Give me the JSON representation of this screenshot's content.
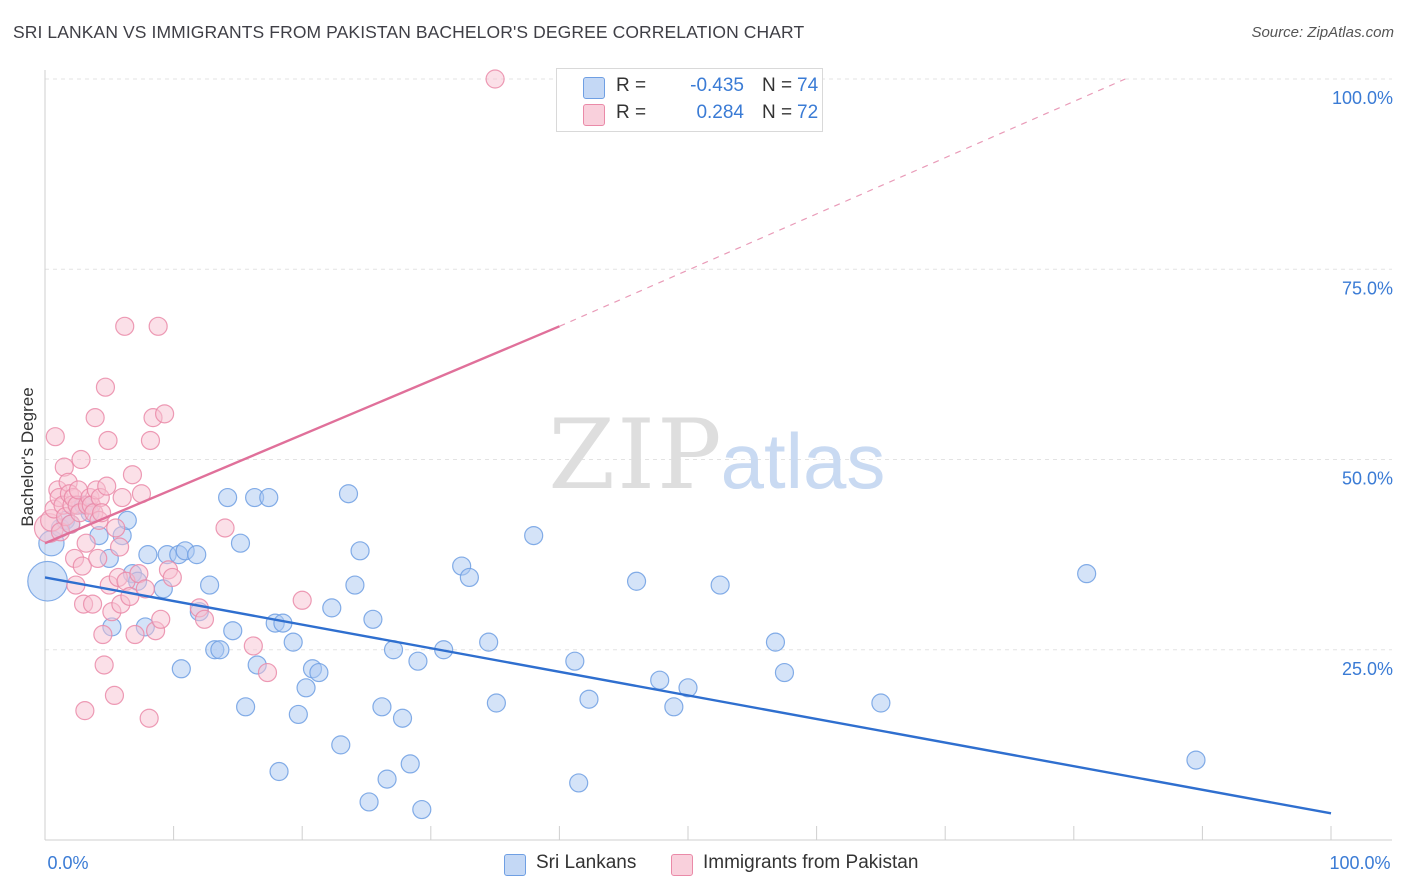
{
  "title": "SRI LANKAN VS IMMIGRANTS FROM PAKISTAN BACHELOR'S DEGREE CORRELATION CHART",
  "source": "Source: ZipAtlas.com",
  "watermark": {
    "part1": "ZIP",
    "part2": "atlas"
  },
  "legend": {
    "rows": [
      {
        "r_label": "R =",
        "r_value": "-0.435",
        "n_label": "N =",
        "n_value": "74",
        "color": "#a9c7f2",
        "border": "#6f9fe3"
      },
      {
        "r_label": "R =",
        "r_value": "0.284",
        "n_label": "N =",
        "n_value": "72",
        "color": "#f7c1d1",
        "border": "#ea8aa8"
      }
    ]
  },
  "bottom_legend": [
    {
      "label": "Sri Lankans",
      "color": "#a9c7f2",
      "border": "#6f9fe3"
    },
    {
      "label": "Immigrants from Pakistan",
      "color": "#f7c1d1",
      "border": "#ea8aa8"
    }
  ],
  "chart_data": {
    "type": "scatter",
    "title": "SRI LANKAN VS IMMIGRANTS FROM PAKISTAN BACHELOR'S DEGREE CORRELATION CHART",
    "xlabel": "",
    "ylabel": "Bachelor's Degree",
    "xlim": [
      0,
      100
    ],
    "ylim": [
      0,
      100
    ],
    "x_tick_labels": [
      "0.0%",
      "100.0%"
    ],
    "y_tick_labels": [
      "25.0%",
      "50.0%",
      "75.0%",
      "100.0%"
    ],
    "y_ticks": [
      25,
      50,
      75,
      100
    ],
    "grid": true,
    "series": [
      {
        "name": "Sri Lankans",
        "color": "#6f9fe3",
        "fill": "#a9c7f2",
        "trend": {
          "x": [
            0,
            100
          ],
          "y": [
            34.5,
            3.5
          ],
          "color": "#2f6fcf",
          "dashed_extension": false
        },
        "points": [
          {
            "x": 0.2,
            "y": 34,
            "s": 2.2
          },
          {
            "x": 0.5,
            "y": 39,
            "s": 1.4
          },
          {
            "x": 1.2,
            "y": 41,
            "s": 1
          },
          {
            "x": 1.6,
            "y": 42,
            "s": 1
          },
          {
            "x": 2.0,
            "y": 41.5,
            "s": 1
          },
          {
            "x": 2.5,
            "y": 44,
            "s": 1
          },
          {
            "x": 3.0,
            "y": 44,
            "s": 1
          },
          {
            "x": 3.5,
            "y": 43,
            "s": 1
          },
          {
            "x": 4.2,
            "y": 40,
            "s": 1
          },
          {
            "x": 5.0,
            "y": 37,
            "s": 1
          },
          {
            "x": 5.2,
            "y": 28,
            "s": 1
          },
          {
            "x": 6.0,
            "y": 40,
            "s": 1
          },
          {
            "x": 6.4,
            "y": 42,
            "s": 1
          },
          {
            "x": 6.8,
            "y": 35,
            "s": 1
          },
          {
            "x": 7.2,
            "y": 34,
            "s": 1
          },
          {
            "x": 7.8,
            "y": 28,
            "s": 1
          },
          {
            "x": 8.0,
            "y": 37.5,
            "s": 1
          },
          {
            "x": 9.2,
            "y": 33,
            "s": 1
          },
          {
            "x": 9.5,
            "y": 37.5,
            "s": 1
          },
          {
            "x": 10.4,
            "y": 37.5,
            "s": 1
          },
          {
            "x": 10.6,
            "y": 22.5,
            "s": 1
          },
          {
            "x": 10.9,
            "y": 38,
            "s": 1
          },
          {
            "x": 11.8,
            "y": 37.5,
            "s": 1
          },
          {
            "x": 12.0,
            "y": 30,
            "s": 1
          },
          {
            "x": 12.8,
            "y": 33.5,
            "s": 1
          },
          {
            "x": 13.2,
            "y": 25,
            "s": 1
          },
          {
            "x": 13.6,
            "y": 25,
            "s": 1
          },
          {
            "x": 14.2,
            "y": 45,
            "s": 1
          },
          {
            "x": 14.6,
            "y": 27.5,
            "s": 1
          },
          {
            "x": 15.2,
            "y": 39,
            "s": 1
          },
          {
            "x": 15.6,
            "y": 17.5,
            "s": 1
          },
          {
            "x": 16.3,
            "y": 45,
            "s": 1
          },
          {
            "x": 16.5,
            "y": 23,
            "s": 1
          },
          {
            "x": 17.4,
            "y": 45,
            "s": 1
          },
          {
            "x": 17.9,
            "y": 28.5,
            "s": 1
          },
          {
            "x": 18.2,
            "y": 9,
            "s": 1
          },
          {
            "x": 18.5,
            "y": 28.5,
            "s": 1
          },
          {
            "x": 19.3,
            "y": 26,
            "s": 1
          },
          {
            "x": 19.7,
            "y": 16.5,
            "s": 1
          },
          {
            "x": 20.3,
            "y": 20,
            "s": 1
          },
          {
            "x": 20.8,
            "y": 22.5,
            "s": 1
          },
          {
            "x": 21.3,
            "y": 22,
            "s": 1
          },
          {
            "x": 22.3,
            "y": 30.5,
            "s": 1
          },
          {
            "x": 23.0,
            "y": 12.5,
            "s": 1
          },
          {
            "x": 23.6,
            "y": 45.5,
            "s": 1
          },
          {
            "x": 24.1,
            "y": 33.5,
            "s": 1
          },
          {
            "x": 24.5,
            "y": 38,
            "s": 1
          },
          {
            "x": 25.2,
            "y": 5,
            "s": 1
          },
          {
            "x": 25.5,
            "y": 29,
            "s": 1
          },
          {
            "x": 26.2,
            "y": 17.5,
            "s": 1
          },
          {
            "x": 26.6,
            "y": 8,
            "s": 1
          },
          {
            "x": 27.1,
            "y": 25,
            "s": 1
          },
          {
            "x": 27.8,
            "y": 16,
            "s": 1
          },
          {
            "x": 28.4,
            "y": 10,
            "s": 1
          },
          {
            "x": 29.0,
            "y": 23.5,
            "s": 1
          },
          {
            "x": 29.3,
            "y": 4,
            "s": 1
          },
          {
            "x": 31.0,
            "y": 25,
            "s": 1
          },
          {
            "x": 32.4,
            "y": 36,
            "s": 1
          },
          {
            "x": 33.0,
            "y": 34.5,
            "s": 1
          },
          {
            "x": 34.5,
            "y": 26,
            "s": 1
          },
          {
            "x": 35.1,
            "y": 18,
            "s": 1
          },
          {
            "x": 38.0,
            "y": 40,
            "s": 1
          },
          {
            "x": 41.2,
            "y": 23.5,
            "s": 1
          },
          {
            "x": 41.5,
            "y": 7.5,
            "s": 1
          },
          {
            "x": 42.3,
            "y": 18.5,
            "s": 1
          },
          {
            "x": 46.0,
            "y": 34,
            "s": 1
          },
          {
            "x": 47.8,
            "y": 21,
            "s": 1
          },
          {
            "x": 48.9,
            "y": 17.5,
            "s": 1
          },
          {
            "x": 50.0,
            "y": 20,
            "s": 1
          },
          {
            "x": 52.5,
            "y": 33.5,
            "s": 1
          },
          {
            "x": 56.8,
            "y": 26,
            "s": 1
          },
          {
            "x": 57.5,
            "y": 22,
            "s": 1
          },
          {
            "x": 65.0,
            "y": 18,
            "s": 1
          },
          {
            "x": 81.0,
            "y": 35,
            "s": 1
          },
          {
            "x": 89.5,
            "y": 10.5,
            "s": 1
          }
        ]
      },
      {
        "name": "Immigrants from Pakistan",
        "color": "#ea8aa8",
        "fill": "#f7c1d1",
        "trend": {
          "x": [
            0,
            40
          ],
          "y": [
            39,
            67.5
          ],
          "color": "#e0709a",
          "dashed_extension": true,
          "dash_to": {
            "x": 84,
            "y": 100
          }
        },
        "points": [
          {
            "x": 0.3,
            "y": 41,
            "s": 1.6
          },
          {
            "x": 0.5,
            "y": 42,
            "s": 1.2
          },
          {
            "x": 0.7,
            "y": 43.5,
            "s": 1
          },
          {
            "x": 0.8,
            "y": 53,
            "s": 1
          },
          {
            "x": 1.0,
            "y": 46,
            "s": 1
          },
          {
            "x": 1.1,
            "y": 45,
            "s": 1
          },
          {
            "x": 1.2,
            "y": 40.5,
            "s": 1
          },
          {
            "x": 1.4,
            "y": 44,
            "s": 1
          },
          {
            "x": 1.5,
            "y": 49,
            "s": 1
          },
          {
            "x": 1.6,
            "y": 42.5,
            "s": 1
          },
          {
            "x": 1.8,
            "y": 47,
            "s": 1
          },
          {
            "x": 1.9,
            "y": 45.5,
            "s": 1
          },
          {
            "x": 2.0,
            "y": 41.5,
            "s": 1
          },
          {
            "x": 2.1,
            "y": 44,
            "s": 1
          },
          {
            "x": 2.2,
            "y": 45,
            "s": 1
          },
          {
            "x": 2.3,
            "y": 37,
            "s": 1
          },
          {
            "x": 2.4,
            "y": 33.5,
            "s": 1
          },
          {
            "x": 2.5,
            "y": 44,
            "s": 1
          },
          {
            "x": 2.6,
            "y": 46,
            "s": 1
          },
          {
            "x": 2.7,
            "y": 43,
            "s": 1
          },
          {
            "x": 2.8,
            "y": 50,
            "s": 1
          },
          {
            "x": 2.9,
            "y": 36,
            "s": 1
          },
          {
            "x": 3.0,
            "y": 31,
            "s": 1
          },
          {
            "x": 3.1,
            "y": 17,
            "s": 1
          },
          {
            "x": 3.2,
            "y": 39,
            "s": 1
          },
          {
            "x": 3.3,
            "y": 44,
            "s": 1
          },
          {
            "x": 3.5,
            "y": 45,
            "s": 1
          },
          {
            "x": 3.6,
            "y": 44,
            "s": 1
          },
          {
            "x": 3.7,
            "y": 31,
            "s": 1
          },
          {
            "x": 3.8,
            "y": 43,
            "s": 1
          },
          {
            "x": 3.9,
            "y": 55.5,
            "s": 1
          },
          {
            "x": 4.0,
            "y": 46,
            "s": 1
          },
          {
            "x": 4.1,
            "y": 37,
            "s": 1
          },
          {
            "x": 4.2,
            "y": 42,
            "s": 1
          },
          {
            "x": 4.3,
            "y": 45,
            "s": 1
          },
          {
            "x": 4.4,
            "y": 43,
            "s": 1
          },
          {
            "x": 4.5,
            "y": 27,
            "s": 1
          },
          {
            "x": 4.6,
            "y": 23,
            "s": 1
          },
          {
            "x": 4.7,
            "y": 59.5,
            "s": 1
          },
          {
            "x": 4.8,
            "y": 46.5,
            "s": 1
          },
          {
            "x": 4.9,
            "y": 52.5,
            "s": 1
          },
          {
            "x": 5.0,
            "y": 33.5,
            "s": 1
          },
          {
            "x": 5.2,
            "y": 30,
            "s": 1
          },
          {
            "x": 5.4,
            "y": 19,
            "s": 1
          },
          {
            "x": 5.5,
            "y": 41,
            "s": 1
          },
          {
            "x": 5.7,
            "y": 34.5,
            "s": 1
          },
          {
            "x": 5.8,
            "y": 38.5,
            "s": 1
          },
          {
            "x": 5.9,
            "y": 31,
            "s": 1
          },
          {
            "x": 6.0,
            "y": 45,
            "s": 1
          },
          {
            "x": 6.2,
            "y": 67.5,
            "s": 1
          },
          {
            "x": 6.3,
            "y": 34,
            "s": 1
          },
          {
            "x": 6.6,
            "y": 32,
            "s": 1
          },
          {
            "x": 6.8,
            "y": 48,
            "s": 1
          },
          {
            "x": 7.0,
            "y": 27,
            "s": 1
          },
          {
            "x": 7.3,
            "y": 35,
            "s": 1
          },
          {
            "x": 7.5,
            "y": 45.5,
            "s": 1
          },
          {
            "x": 7.8,
            "y": 33,
            "s": 1
          },
          {
            "x": 8.1,
            "y": 16,
            "s": 1
          },
          {
            "x": 8.2,
            "y": 52.5,
            "s": 1
          },
          {
            "x": 8.4,
            "y": 55.5,
            "s": 1
          },
          {
            "x": 8.6,
            "y": 27.5,
            "s": 1
          },
          {
            "x": 8.8,
            "y": 67.5,
            "s": 1
          },
          {
            "x": 9.0,
            "y": 29,
            "s": 1
          },
          {
            "x": 9.3,
            "y": 56,
            "s": 1
          },
          {
            "x": 9.6,
            "y": 35.5,
            "s": 1
          },
          {
            "x": 9.9,
            "y": 34.5,
            "s": 1
          },
          {
            "x": 12.0,
            "y": 30.5,
            "s": 1
          },
          {
            "x": 12.4,
            "y": 29,
            "s": 1
          },
          {
            "x": 14.0,
            "y": 41,
            "s": 1
          },
          {
            "x": 16.2,
            "y": 25.5,
            "s": 1
          },
          {
            "x": 17.3,
            "y": 22,
            "s": 1
          },
          {
            "x": 20.0,
            "y": 31.5,
            "s": 1
          },
          {
            "x": 35.0,
            "y": 100,
            "s": 1
          }
        ]
      }
    ]
  }
}
